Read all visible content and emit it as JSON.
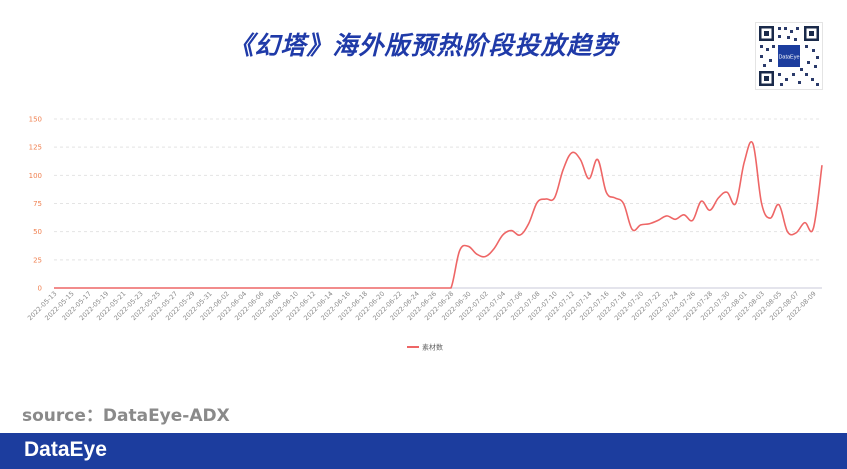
{
  "header": {
    "title": "《幻塔》海外版预热阶段投放趋势"
  },
  "qr_code": {
    "icon": "qr-code-icon",
    "center_label": "DataEye"
  },
  "source_text": "source：DataEye-ADX",
  "footer": {
    "brand": "DataEye",
    "color": "#1c3d9e"
  },
  "colors": {
    "title": "#1f3aa8",
    "line": "#ee6666",
    "axis_text": "#f08050",
    "grid": "#e0e0e0"
  },
  "chart_data": {
    "type": "line",
    "title": "",
    "xlabel": "",
    "ylabel": "",
    "ylim": [
      0,
      150
    ],
    "yticks": [
      0,
      25,
      50,
      75,
      100,
      125,
      150
    ],
    "grid": true,
    "legend_position": "bottom-center",
    "categories": [
      "2022-05-13",
      "2022-05-14",
      "2022-05-15",
      "2022-05-16",
      "2022-05-17",
      "2022-05-18",
      "2022-05-19",
      "2022-05-20",
      "2022-05-21",
      "2022-05-22",
      "2022-05-23",
      "2022-05-24",
      "2022-05-25",
      "2022-05-26",
      "2022-05-27",
      "2022-05-28",
      "2022-05-29",
      "2022-05-30",
      "2022-05-31",
      "2022-06-01",
      "2022-06-02",
      "2022-06-03",
      "2022-06-04",
      "2022-06-05",
      "2022-06-06",
      "2022-06-07",
      "2022-06-08",
      "2022-06-09",
      "2022-06-10",
      "2022-06-11",
      "2022-06-12",
      "2022-06-13",
      "2022-06-14",
      "2022-06-15",
      "2022-06-16",
      "2022-06-17",
      "2022-06-18",
      "2022-06-19",
      "2022-06-20",
      "2022-06-21",
      "2022-06-22",
      "2022-06-23",
      "2022-06-24",
      "2022-06-25",
      "2022-06-26",
      "2022-06-27",
      "2022-06-28",
      "2022-06-29",
      "2022-06-30",
      "2022-07-01",
      "2022-07-02",
      "2022-07-03",
      "2022-07-04",
      "2022-07-05",
      "2022-07-06",
      "2022-07-07",
      "2022-07-08",
      "2022-07-09",
      "2022-07-10",
      "2022-07-11",
      "2022-07-12",
      "2022-07-13",
      "2022-07-14",
      "2022-07-15",
      "2022-07-16",
      "2022-07-17",
      "2022-07-18",
      "2022-07-19",
      "2022-07-20",
      "2022-07-21",
      "2022-07-22",
      "2022-07-23",
      "2022-07-24",
      "2022-07-25",
      "2022-07-26",
      "2022-07-27",
      "2022-07-28",
      "2022-07-29",
      "2022-07-30",
      "2022-07-31",
      "2022-08-01",
      "2022-08-02",
      "2022-08-03",
      "2022-08-04",
      "2022-08-05",
      "2022-08-06",
      "2022-08-07",
      "2022-08-08",
      "2022-08-09",
      "2022-08-10"
    ],
    "tick_labels": [
      "2022-05-13",
      "2022-05-15",
      "2022-05-17",
      "2022-05-19",
      "2022-05-21",
      "2022-05-23",
      "2022-05-25",
      "2022-05-27",
      "2022-05-29",
      "2022-05-31",
      "2022-06-02",
      "2022-06-04",
      "2022-06-06",
      "2022-06-08",
      "2022-06-10",
      "2022-06-12",
      "2022-06-14",
      "2022-06-16",
      "2022-06-18",
      "2022-06-20",
      "2022-06-22",
      "2022-06-24",
      "2022-06-26",
      "2022-06-28",
      "2022-06-30",
      "2022-07-02",
      "2022-07-04",
      "2022-07-06",
      "2022-07-08",
      "2022-07-10",
      "2022-07-12",
      "2022-07-14",
      "2022-07-16",
      "2022-07-18",
      "2022-07-20",
      "2022-07-22",
      "2022-07-24",
      "2022-07-26",
      "2022-07-28",
      "2022-07-30",
      "2022-08-01",
      "2022-08-03",
      "2022-08-05",
      "2022-08-07",
      "2022-08-09"
    ],
    "series": [
      {
        "name": "素材数",
        "color": "#ee6666",
        "values": [
          0,
          0,
          0,
          0,
          0,
          0,
          0,
          0,
          0,
          0,
          0,
          0,
          0,
          0,
          0,
          0,
          0,
          0,
          0,
          0,
          0,
          0,
          0,
          0,
          0,
          0,
          0,
          0,
          0,
          0,
          0,
          0,
          0,
          0,
          0,
          0,
          0,
          0,
          0,
          0,
          0,
          0,
          0,
          0,
          0,
          0,
          0,
          33,
          37,
          30,
          28,
          35,
          47,
          51,
          47,
          57,
          76,
          79,
          80,
          105,
          120,
          114,
          97,
          114,
          85,
          80,
          75,
          52,
          56,
          57,
          60,
          64,
          61,
          65,
          60,
          77,
          69,
          80,
          85,
          75,
          112,
          128,
          75,
          62,
          74,
          50,
          49,
          58,
          53,
          109
        ]
      }
    ]
  }
}
